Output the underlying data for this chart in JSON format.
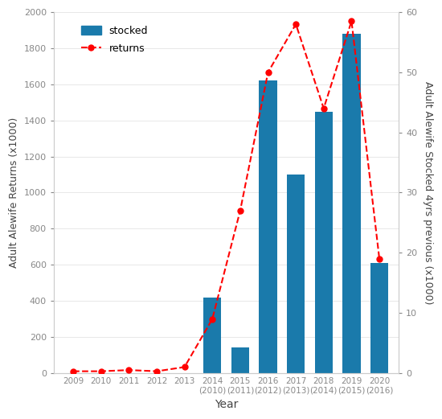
{
  "bar_x_positions": [
    5,
    6,
    7,
    8,
    9,
    10,
    11
  ],
  "bar_values": [
    420,
    140,
    1620,
    1100,
    1450,
    1880,
    610
  ],
  "bar_color": "#1a7aab",
  "line_x_positions": [
    0,
    1,
    2,
    3,
    4,
    5,
    6,
    7,
    8,
    9,
    10,
    11
  ],
  "line_values": [
    0.3,
    0.3,
    0.5,
    0.3,
    1.0,
    9.0,
    27.0,
    50.0,
    58.0,
    44.0,
    58.5,
    19.0
  ],
  "line_color": "red",
  "left_ylabel": "Adult Alewife Returns (x1000)",
  "right_ylabel": "Adult Alewife Stocked 4yrs previous (x1000)",
  "xlabel": "Year",
  "left_ylim": [
    0,
    2000
  ],
  "right_ylim": [
    0,
    60
  ],
  "left_yticks": [
    0,
    200,
    400,
    600,
    800,
    1000,
    1200,
    1400,
    1600,
    1800,
    2000
  ],
  "right_yticks": [
    0,
    10,
    20,
    30,
    40,
    50,
    60
  ],
  "legend_stocked": "stocked",
  "legend_returns": "returns",
  "x_top_labels": [
    "2009",
    "2010",
    "2011",
    "2012",
    "2013",
    "2014",
    "2015",
    "2016",
    "2017",
    "2018",
    "2019",
    "2020"
  ],
  "x_bot_labels": [
    "",
    "",
    "",
    "",
    "",
    "(2010)",
    "(2011)",
    "(2012)",
    "(2013)",
    "(2014)",
    "(2015)",
    "(2016)"
  ],
  "x_positions": [
    0,
    1,
    2,
    3,
    4,
    5,
    6,
    7,
    8,
    9,
    10,
    11
  ],
  "background_color": "#ffffff",
  "spine_color": "#cccccc",
  "grid_color": "#e8e8e8",
  "tick_color": "#888888",
  "label_color": "#444444"
}
